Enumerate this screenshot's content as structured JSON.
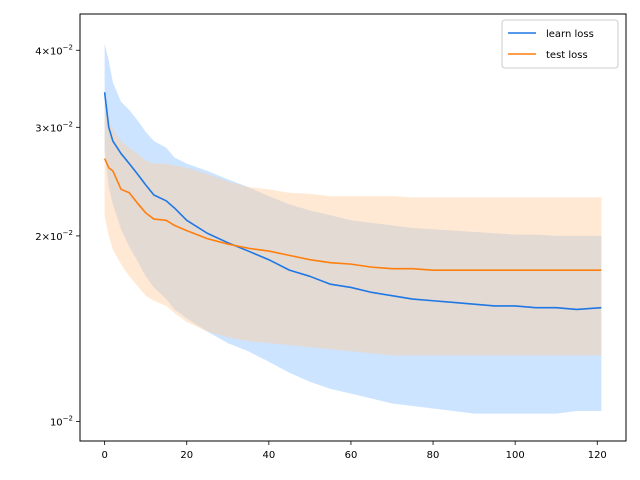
{
  "chart_data": {
    "type": "line",
    "title": "",
    "xlabel": "",
    "ylabel": "",
    "yscale": "log",
    "xlim": [
      -6,
      127
    ],
    "ylim": [
      0.0093,
      0.0458
    ],
    "x_ticks": [
      0,
      20,
      40,
      60,
      80,
      100,
      120
    ],
    "x_tick_labels": [
      "0",
      "20",
      "40",
      "60",
      "80",
      "100",
      "120"
    ],
    "y_ticks": [
      {
        "value": 0.04,
        "mantissa": "4",
        "base": "10",
        "exp": "−2"
      },
      {
        "value": 0.03,
        "mantissa": "3",
        "base": "10",
        "exp": "−2"
      },
      {
        "value": 0.02,
        "mantissa": "2",
        "base": "10",
        "exp": "−2"
      },
      {
        "value": 0.01,
        "mantissa": "",
        "base": "10",
        "exp": "−2"
      }
    ],
    "grid": false,
    "legend_position": "top-right",
    "series": [
      {
        "name": "learn loss",
        "color": "#1f77e4",
        "band_color": "#8ec3ff",
        "x": [
          0,
          1,
          2,
          4,
          6,
          8,
          10,
          12,
          15,
          17,
          20,
          25,
          30,
          35,
          40,
          45,
          50,
          55,
          60,
          65,
          70,
          75,
          80,
          85,
          90,
          95,
          100,
          105,
          110,
          115,
          121
        ],
        "values": [
          0.0342,
          0.03,
          0.0285,
          0.0272,
          0.0262,
          0.0252,
          0.0242,
          0.0233,
          0.0228,
          0.0222,
          0.0212,
          0.0202,
          0.0195,
          0.0189,
          0.0183,
          0.0176,
          0.0172,
          0.0167,
          0.0165,
          0.0162,
          0.016,
          0.0158,
          0.0157,
          0.0156,
          0.0155,
          0.0154,
          0.0154,
          0.0153,
          0.0153,
          0.0152,
          0.0153
        ],
        "upper": [
          0.041,
          0.0385,
          0.0355,
          0.033,
          0.032,
          0.0308,
          0.0295,
          0.0285,
          0.0278,
          0.0268,
          0.0262,
          0.0255,
          0.0247,
          0.024,
          0.0232,
          0.0225,
          0.022,
          0.0216,
          0.0212,
          0.021,
          0.0208,
          0.0206,
          0.0205,
          0.0204,
          0.0203,
          0.0202,
          0.0201,
          0.0201,
          0.02,
          0.02,
          0.02
        ],
        "lower": [
          0.0275,
          0.024,
          0.0225,
          0.0205,
          0.0192,
          0.0182,
          0.0172,
          0.0165,
          0.0158,
          0.0152,
          0.0147,
          0.014,
          0.0134,
          0.013,
          0.0125,
          0.012,
          0.0116,
          0.0113,
          0.0111,
          0.0109,
          0.0107,
          0.0106,
          0.0105,
          0.0104,
          0.0103,
          0.0103,
          0.0103,
          0.0103,
          0.0103,
          0.0104,
          0.0104
        ]
      },
      {
        "name": "test loss",
        "color": "#ff7f0e",
        "band_color": "#ffcf9f",
        "x": [
          0,
          1,
          2,
          4,
          6,
          8,
          10,
          12,
          15,
          17,
          20,
          25,
          30,
          35,
          40,
          45,
          50,
          55,
          60,
          65,
          70,
          75,
          80,
          85,
          90,
          95,
          100,
          105,
          110,
          115,
          121
        ],
        "values": [
          0.0267,
          0.0258,
          0.0255,
          0.0238,
          0.0235,
          0.0226,
          0.0218,
          0.0213,
          0.0212,
          0.0208,
          0.0204,
          0.0198,
          0.0194,
          0.0191,
          0.0189,
          0.0186,
          0.0183,
          0.0181,
          0.018,
          0.0178,
          0.0177,
          0.0177,
          0.0176,
          0.0176,
          0.0176,
          0.0176,
          0.0176,
          0.0176,
          0.0176,
          0.0176,
          0.0176
        ],
        "upper": [
          0.033,
          0.031,
          0.0298,
          0.0285,
          0.0278,
          0.0272,
          0.0265,
          0.0262,
          0.0262,
          0.026,
          0.0258,
          0.0252,
          0.0245,
          0.024,
          0.0238,
          0.0235,
          0.0234,
          0.0232,
          0.0232,
          0.0232,
          0.0232,
          0.0231,
          0.0231,
          0.0231,
          0.0231,
          0.0231,
          0.0231,
          0.0231,
          0.0231,
          0.0231,
          0.0231
        ],
        "lower": [
          0.0215,
          0.02,
          0.019,
          0.018,
          0.0172,
          0.0166,
          0.016,
          0.0157,
          0.0154,
          0.015,
          0.0145,
          0.014,
          0.0137,
          0.0135,
          0.0134,
          0.0133,
          0.0132,
          0.0131,
          0.013,
          0.0129,
          0.0128,
          0.0128,
          0.0128,
          0.0128,
          0.0128,
          0.0128,
          0.0128,
          0.0128,
          0.0128,
          0.0128,
          0.0128
        ]
      }
    ]
  }
}
